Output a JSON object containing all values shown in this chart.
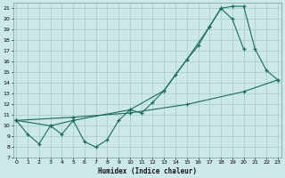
{
  "xlabel": "Humidex (Indice chaleur)",
  "background_color": "#cce8e8",
  "grid_color": "#aacfcf",
  "line_color": "#1a6b5a",
  "line1_x": [
    0,
    1,
    2,
    3,
    4,
    5,
    6,
    7,
    8,
    9,
    10,
    11,
    12,
    13,
    14,
    15,
    16,
    17,
    18,
    19,
    20,
    21,
    22,
    23
  ],
  "line1_y": [
    10.5,
    9.2,
    8.3,
    10.0,
    9.2,
    10.5,
    8.5,
    8.0,
    8.7,
    10.5,
    11.5,
    11.2,
    12.2,
    13.3,
    14.8,
    16.2,
    17.5,
    19.3,
    21.0,
    21.2,
    21.2,
    17.2,
    15.2,
    14.3
  ],
  "line2_x": [
    0,
    3,
    5,
    10,
    13,
    15,
    17,
    18,
    19,
    20
  ],
  "line2_y": [
    10.5,
    10.0,
    10.5,
    11.5,
    13.3,
    16.2,
    19.3,
    21.0,
    20.0,
    17.2
  ],
  "line3_x": [
    0,
    5,
    10,
    15,
    20,
    23
  ],
  "line3_y": [
    10.5,
    10.8,
    11.2,
    12.0,
    13.2,
    14.3
  ],
  "xlim": [
    -0.3,
    23.3
  ],
  "ylim": [
    7,
    21.5
  ],
  "yticks": [
    7,
    8,
    9,
    10,
    11,
    12,
    13,
    14,
    15,
    16,
    17,
    18,
    19,
    20,
    21
  ],
  "xticks": [
    0,
    1,
    2,
    3,
    4,
    5,
    6,
    7,
    8,
    9,
    10,
    11,
    12,
    13,
    14,
    15,
    16,
    17,
    18,
    19,
    20,
    21,
    22,
    23
  ]
}
